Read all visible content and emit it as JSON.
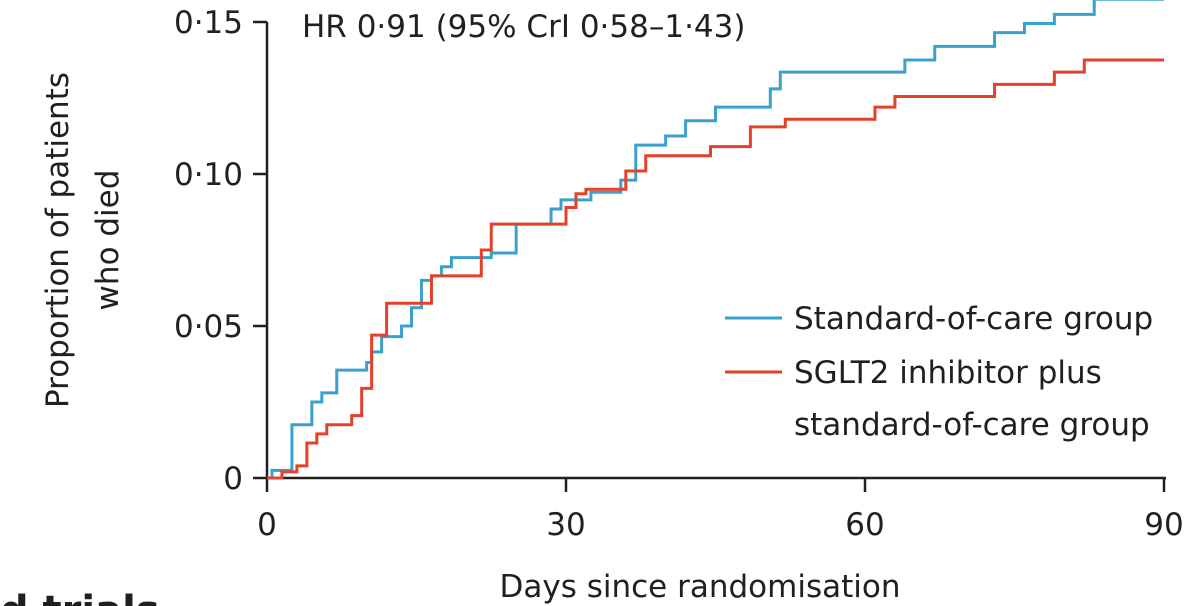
{
  "chart_data": {
    "type": "line",
    "step": true,
    "annotation": "HR 0·91 (95% CrI 0·58–1·43)",
    "xlabel": "Days since randomisation",
    "ylabel_lines": [
      "Proportion of patients",
      "who died"
    ],
    "xlim": [
      0,
      90
    ],
    "ylim": [
      0,
      0.15
    ],
    "x_ticks": [
      0,
      30,
      60,
      90
    ],
    "x_tick_labels": [
      "0",
      "30",
      "60",
      "90"
    ],
    "y_ticks": [
      0,
      0.05,
      0.1,
      0.15
    ],
    "y_tick_labels": [
      "0",
      "0·05",
      "0·10",
      "0·15"
    ],
    "grid": false,
    "legend_position": "right",
    "series": [
      {
        "name": "Standard-of-care group",
        "color": "#3aa0cc",
        "x": [
          0,
          0.5,
          2.5,
          4.5,
          5.5,
          7,
          10,
          10.5,
          11.5,
          13.5,
          14.5,
          15.5,
          16.5,
          17.5,
          18.5,
          22.5,
          25,
          28.5,
          29.5,
          32.5,
          35.5,
          37,
          40,
          42,
          45,
          50.5,
          51.5,
          58.5,
          61.5,
          64,
          67,
          73,
          76,
          79,
          83,
          90
        ],
        "y": [
          0,
          0.0025,
          0.0175,
          0.025,
          0.028,
          0.0355,
          0.038,
          0.0415,
          0.0465,
          0.05,
          0.056,
          0.065,
          0.0665,
          0.0695,
          0.0725,
          0.074,
          0.0835,
          0.0885,
          0.0915,
          0.094,
          0.098,
          0.1095,
          0.1125,
          0.1175,
          0.122,
          0.128,
          0.1335,
          0.1335,
          0.1335,
          0.1375,
          0.142,
          0.1465,
          0.1495,
          0.1525,
          0.1575,
          0.1575
        ]
      },
      {
        "name": "SGLT2 inhibitor plus standard-of-care group",
        "color": "#e4412b",
        "x": [
          0,
          1.5,
          3,
          4,
          5,
          6,
          8.5,
          9.5,
          10.5,
          12,
          15,
          16.5,
          21.5,
          22.5,
          26,
          29,
          30,
          31,
          32,
          35.5,
          36,
          38,
          44.5,
          48.5,
          52,
          61,
          63,
          73,
          79,
          82,
          90
        ],
        "y": [
          0,
          0.002,
          0.004,
          0.0115,
          0.0145,
          0.0175,
          0.0205,
          0.0295,
          0.047,
          0.0575,
          0.0575,
          0.0665,
          0.075,
          0.0835,
          0.0835,
          0.0835,
          0.089,
          0.0935,
          0.095,
          0.095,
          0.101,
          0.106,
          0.109,
          0.1155,
          0.118,
          0.122,
          0.1255,
          0.1295,
          0.1335,
          0.1375,
          0.1375
        ]
      }
    ],
    "legend": [
      {
        "lines": [
          "Standard-of-care group"
        ],
        "color": "#3aa0cc"
      },
      {
        "lines": [
          "SGLT2 inhibitor plus",
          "standard-of-care group"
        ],
        "color": "#e4412b"
      }
    ]
  },
  "partial_text": "d trials"
}
